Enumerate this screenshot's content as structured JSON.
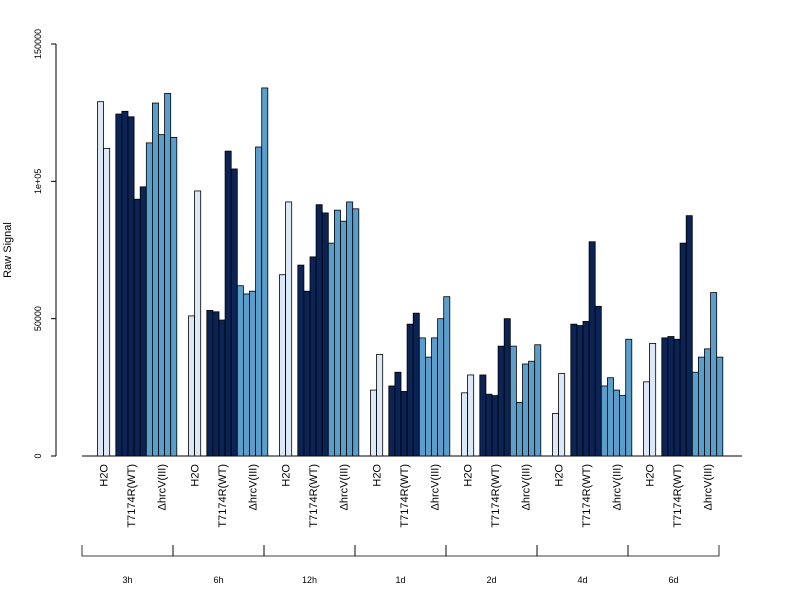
{
  "colors": {
    "H2O": "#dde8f6",
    "T7174R(WT)": "#0c2356",
    "ΔhrcV(III)": "#5a9ecb"
  },
  "chart_data": {
    "type": "bar",
    "ylabel": "Raw Signal",
    "ylim": [
      0,
      150000
    ],
    "yticks": [
      {
        "value": 0,
        "label": "0"
      },
      {
        "value": 50000,
        "label": "50000"
      },
      {
        "value": 100000,
        "label": "1e+05"
      },
      {
        "value": 150000,
        "label": "150000"
      }
    ],
    "groups": [
      {
        "time": "3h",
        "H2O": [
          129000,
          112000
        ],
        "T7174R(WT)": [
          124500,
          125500,
          123500,
          93500,
          98000
        ],
        "ΔhrcV(III)": [
          114000,
          128500,
          117000,
          132000,
          116000
        ]
      },
      {
        "time": "6h",
        "H2O": [
          51000,
          96500
        ],
        "T7174R(WT)": [
          53000,
          52500,
          49500,
          111000,
          104500
        ],
        "ΔhrcV(III)": [
          62000,
          59000,
          60000,
          112500,
          134000
        ]
      },
      {
        "time": "12h",
        "H2O": [
          66000,
          92500
        ],
        "T7174R(WT)": [
          69500,
          60000,
          72500,
          91500,
          88500
        ],
        "ΔhrcV(III)": [
          77500,
          89500,
          85500,
          92500,
          90000
        ]
      },
      {
        "time": "1d",
        "H2O": [
          24000,
          37000
        ],
        "T7174R(WT)": [
          25500,
          30500,
          23500,
          48000,
          52000
        ],
        "ΔhrcV(III)": [
          43000,
          36000,
          43000,
          50000,
          58000
        ]
      },
      {
        "time": "2d",
        "H2O": [
          23000,
          29500
        ],
        "T7174R(WT)": [
          29500,
          22500,
          22000,
          40000,
          50000
        ],
        "ΔhrcV(III)": [
          40000,
          19500,
          33500,
          34500,
          40500
        ]
      },
      {
        "time": "4d",
        "H2O": [
          15500,
          30000
        ],
        "T7174R(WT)": [
          48000,
          47500,
          49000,
          78000,
          54500
        ],
        "ΔhrcV(III)": [
          25500,
          28500,
          24000,
          22000,
          42500
        ]
      },
      {
        "time": "6d",
        "H2O": [
          27000,
          41000
        ],
        "T7174R(WT)": [
          43000,
          43500,
          42500,
          77500,
          87500
        ],
        "ΔhrcV(III)": [
          30500,
          36000,
          39000,
          59500,
          36000
        ]
      }
    ]
  }
}
